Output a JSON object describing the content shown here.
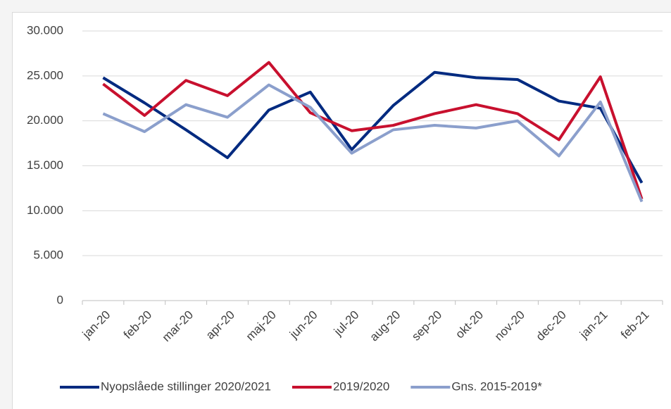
{
  "chart_data": {
    "type": "line",
    "categories": [
      "jan-20",
      "feb-20",
      "mar-20",
      "apr-20",
      "maj-20",
      "jun-20",
      "jul-20",
      "aug-20",
      "sep-20",
      "okt-20",
      "nov-20",
      "dec-20",
      "jan-21",
      "feb-21"
    ],
    "series": [
      {
        "name": "Nyopslåede stillinger 2020/2021",
        "color": "#002a80",
        "values": [
          24800,
          22000,
          19000,
          15900,
          21200,
          23200,
          16800,
          21700,
          25400,
          24800,
          24600,
          22200,
          21400,
          13100
        ]
      },
      {
        "name": "2019/2020",
        "color": "#c8102e",
        "values": [
          24100,
          20600,
          24500,
          22800,
          26500,
          20900,
          18900,
          19500,
          20800,
          21800,
          20800,
          17900,
          24900,
          11300
        ]
      },
      {
        "name": "Gns. 2015-2019*",
        "color": "#8b9fcc",
        "values": [
          20800,
          18800,
          21800,
          20400,
          24000,
          21500,
          16400,
          19000,
          19500,
          19200,
          20000,
          16100,
          22100,
          11000
        ]
      }
    ],
    "ylim": [
      0,
      30000
    ],
    "yticks": [
      0,
      {
        "value": 5000,
        "label": "5.000"
      },
      {
        "value": 10000,
        "label": "10.000"
      },
      {
        "value": 15000,
        "label": "15.000"
      },
      {
        "value": 20000,
        "label": "20.000"
      },
      {
        "value": 25000,
        "label": "25.000"
      },
      {
        "value": 30000,
        "label": "30.000"
      }
    ],
    "grid": true,
    "legend": "bottom"
  }
}
